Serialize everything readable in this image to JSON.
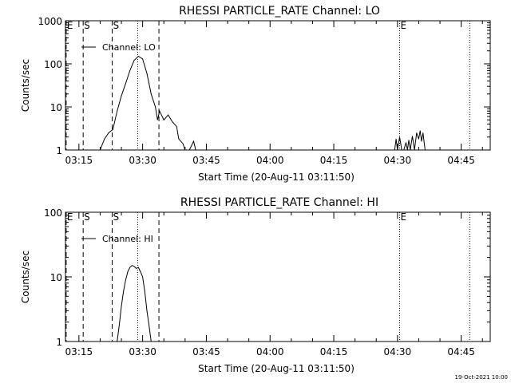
{
  "footer_timestamp": "19-Oct-2021 10:00",
  "colors": {
    "background": "#ffffff",
    "foreground": "#000000"
  },
  "chart_data": [
    {
      "type": "line",
      "title": "RHESSI PARTICLE_RATE Channel: LO",
      "xlabel": "Start Time (20-Aug-11 03:11:50)",
      "ylabel": "Counts/sec",
      "yscale": "log",
      "xlim": [
        "03:11:50",
        "04:51:50"
      ],
      "ylim": [
        1,
        1000
      ],
      "xticks": [
        "03:15",
        "03:30",
        "03:45",
        "04:00",
        "04:15",
        "04:30",
        "04:45"
      ],
      "yticks": [
        "1",
        "10",
        "100",
        "1000"
      ],
      "legend": {
        "label": "Channel: LO",
        "placement": "top-left"
      },
      "markers": [
        {
          "label": "E",
          "time": "03:12:00",
          "style": "dashed"
        },
        {
          "label": "S",
          "time": "03:16:00",
          "style": "dashed"
        },
        {
          "label": "S",
          "time": "03:22:50",
          "style": "dashed"
        },
        {
          "label": "",
          "time": "03:28:50",
          "style": "dotted"
        },
        {
          "label": "",
          "time": "03:33:50",
          "style": "dashed"
        },
        {
          "label": "E",
          "time": "04:30:30",
          "style": "dotted"
        },
        {
          "label": "",
          "time": "04:47:00",
          "style": "dotted"
        }
      ],
      "series": [
        {
          "x": [
            "03:20:00",
            "03:21:00",
            "03:22:00",
            "03:23:00",
            "03:24:00",
            "03:25:00",
            "03:26:00",
            "03:27:00",
            "03:28:00",
            "03:29:00",
            "03:30:00",
            "03:31:00",
            "03:32:00",
            "03:33:00",
            "03:33:30",
            "03:34:00",
            "03:35:00",
            "03:36:00",
            "03:37:00",
            "03:38:00",
            "03:38:30",
            "03:39:30",
            "03:40:00",
            "03:41:00",
            "03:42:00",
            "03:42:30"
          ],
          "y": [
            1,
            1.8,
            2.5,
            3,
            8,
            18,
            35,
            70,
            120,
            150,
            130,
            60,
            20,
            10,
            5,
            8,
            5,
            6.5,
            4.5,
            3.5,
            1.8,
            1.4,
            1,
            1,
            1.6,
            1
          ]
        },
        {
          "x": [
            "04:29:20",
            "04:29:40",
            "04:30:00",
            "04:30:30",
            "04:31:00",
            "04:31:30",
            "04:32:00",
            "04:32:20",
            "04:32:40",
            "04:33:00",
            "04:33:30",
            "04:34:00",
            "04:34:30",
            "04:35:00",
            "04:35:20",
            "04:35:40",
            "04:36:00",
            "04:36:30"
          ],
          "y": [
            1,
            1.8,
            1,
            2,
            1,
            1,
            1.5,
            1,
            1.7,
            1,
            2.1,
            1,
            2.5,
            1.8,
            2.8,
            1.6,
            2.5,
            1
          ]
        }
      ]
    },
    {
      "type": "line",
      "title": "RHESSI PARTICLE_RATE Channel: HI",
      "xlabel": "Start Time (20-Aug-11 03:11:50)",
      "ylabel": "Counts/sec",
      "yscale": "log",
      "xlim": [
        "03:11:50",
        "04:51:50"
      ],
      "ylim": [
        1,
        100
      ],
      "xticks": [
        "03:15",
        "03:30",
        "03:45",
        "04:00",
        "04:15",
        "04:30",
        "04:45"
      ],
      "yticks": [
        "1",
        "10",
        "100"
      ],
      "legend": {
        "label": "Channel: HI",
        "placement": "top-left"
      },
      "markers": [
        {
          "label": "E",
          "time": "03:12:00",
          "style": "dashed"
        },
        {
          "label": "S",
          "time": "03:16:00",
          "style": "dashed"
        },
        {
          "label": "S",
          "time": "03:22:50",
          "style": "dashed"
        },
        {
          "label": "",
          "time": "03:28:50",
          "style": "dotted"
        },
        {
          "label": "",
          "time": "03:33:50",
          "style": "dashed"
        },
        {
          "label": "E",
          "time": "04:30:30",
          "style": "dotted"
        },
        {
          "label": "",
          "time": "04:47:00",
          "style": "dotted"
        }
      ],
      "series": [
        {
          "x": [
            "03:24:00",
            "03:24:30",
            "03:25:00",
            "03:25:30",
            "03:26:00",
            "03:26:30",
            "03:27:00",
            "03:27:30",
            "03:28:00",
            "03:28:30",
            "03:29:00",
            "03:29:30",
            "03:30:00",
            "03:30:30",
            "03:31:00",
            "03:31:30",
            "03:32:00"
          ],
          "y": [
            1,
            1.8,
            3.5,
            6,
            9,
            12,
            14,
            15,
            14.5,
            13.5,
            14,
            12,
            10,
            6,
            3,
            1.8,
            1
          ]
        }
      ]
    }
  ]
}
